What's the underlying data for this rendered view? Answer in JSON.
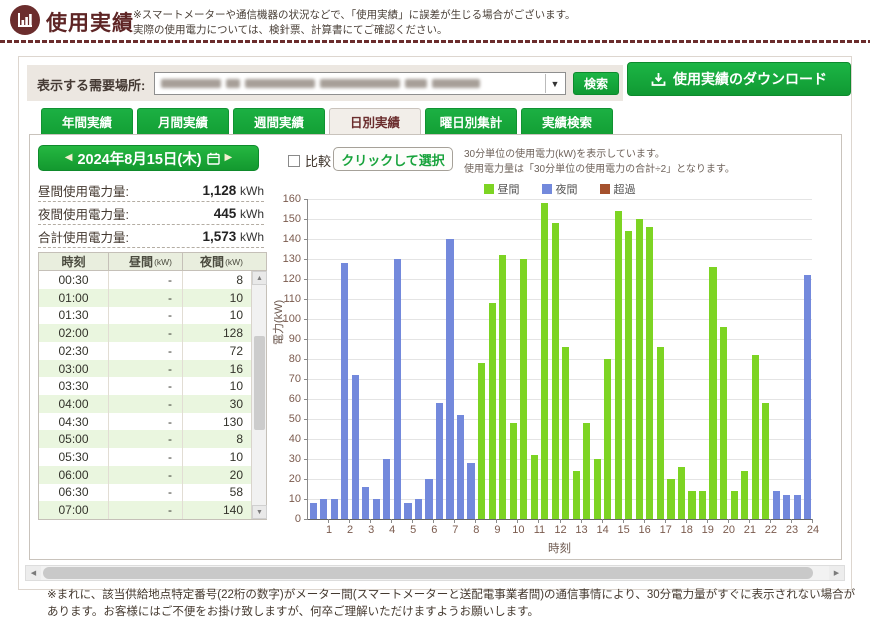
{
  "header": {
    "title": "使用実績",
    "notice_line1": "※スマートメーターや通信機器の状況などで、「使用実績」に誤差が生じる場合がございます。",
    "notice_line2": "実際の使用電力については、検針票、計算書にてご確認ください。"
  },
  "toolbar": {
    "location_label": "表示する需要場所:",
    "search_button": "検索",
    "download_button": "使用実績のダウンロード"
  },
  "tabs": [
    {
      "label": "年間実績",
      "active": false
    },
    {
      "label": "月間実績",
      "active": false
    },
    {
      "label": "週間実績",
      "active": false
    },
    {
      "label": "日別実績",
      "active": true
    },
    {
      "label": "曜日別集計",
      "active": false
    },
    {
      "label": "実績検索",
      "active": false
    }
  ],
  "controls": {
    "date_label": "2024年8月15日(木)",
    "compare_label": "比較",
    "select_button": "クリックして選択",
    "note_line1": "30分単位の使用電力(kW)を表示しています。",
    "note_line2": "使用電力量は「30分単位の使用電力の合計÷2」となります。"
  },
  "summary": [
    {
      "label": "昼間使用電力量:",
      "value": "1,128",
      "unit": "kWh"
    },
    {
      "label": "夜間使用電力量:",
      "value": "445",
      "unit": "kWh"
    },
    {
      "label": "合計使用電力量:",
      "value": "1,573",
      "unit": "kWh"
    }
  ],
  "table": {
    "headers": [
      {
        "label": "時刻",
        "unit": ""
      },
      {
        "label": "昼間",
        "unit": "(kW)"
      },
      {
        "label": "夜間",
        "unit": "(kW)"
      }
    ],
    "rows": [
      [
        "00:30",
        "-",
        "8"
      ],
      [
        "01:00",
        "-",
        "10"
      ],
      [
        "01:30",
        "-",
        "10"
      ],
      [
        "02:00",
        "-",
        "128"
      ],
      [
        "02:30",
        "-",
        "72"
      ],
      [
        "03:00",
        "-",
        "16"
      ],
      [
        "03:30",
        "-",
        "10"
      ],
      [
        "04:00",
        "-",
        "30"
      ],
      [
        "04:30",
        "-",
        "130"
      ],
      [
        "05:00",
        "-",
        "8"
      ],
      [
        "05:30",
        "-",
        "10"
      ],
      [
        "06:00",
        "-",
        "20"
      ],
      [
        "06:30",
        "-",
        "58"
      ],
      [
        "07:00",
        "-",
        "140"
      ]
    ]
  },
  "chart_data": {
    "type": "bar",
    "xlabel": "時刻",
    "ylabel": "電力(kW)",
    "ylim": [
      0,
      160
    ],
    "ytick_step": 10,
    "x_tick_labels": [
      "1",
      "2",
      "3",
      "4",
      "5",
      "6",
      "7",
      "8",
      "9",
      "10",
      "11",
      "12",
      "13",
      "14",
      "15",
      "16",
      "17",
      "18",
      "19",
      "20",
      "21",
      "22",
      "23",
      "24"
    ],
    "legend": [
      {
        "label": "昼間",
        "series": "day"
      },
      {
        "label": "夜間",
        "series": "night"
      },
      {
        "label": "超過",
        "series": "over"
      }
    ],
    "points": [
      {
        "time": "00:30",
        "value": 8,
        "series": "night"
      },
      {
        "time": "01:00",
        "value": 10,
        "series": "night"
      },
      {
        "time": "01:30",
        "value": 10,
        "series": "night"
      },
      {
        "time": "02:00",
        "value": 128,
        "series": "night"
      },
      {
        "time": "02:30",
        "value": 72,
        "series": "night"
      },
      {
        "time": "03:00",
        "value": 16,
        "series": "night"
      },
      {
        "time": "03:30",
        "value": 10,
        "series": "night"
      },
      {
        "time": "04:00",
        "value": 30,
        "series": "night"
      },
      {
        "time": "04:30",
        "value": 130,
        "series": "night"
      },
      {
        "time": "05:00",
        "value": 8,
        "series": "night"
      },
      {
        "time": "05:30",
        "value": 10,
        "series": "night"
      },
      {
        "time": "06:00",
        "value": 20,
        "series": "night"
      },
      {
        "time": "06:30",
        "value": 58,
        "series": "night"
      },
      {
        "time": "07:00",
        "value": 140,
        "series": "night"
      },
      {
        "time": "07:30",
        "value": 52,
        "series": "night"
      },
      {
        "time": "08:00",
        "value": 28,
        "series": "night"
      },
      {
        "time": "08:30",
        "value": 78,
        "series": "day"
      },
      {
        "time": "09:00",
        "value": 108,
        "series": "day"
      },
      {
        "time": "09:30",
        "value": 132,
        "series": "day"
      },
      {
        "time": "10:00",
        "value": 48,
        "series": "day"
      },
      {
        "time": "10:30",
        "value": 130,
        "series": "day"
      },
      {
        "time": "11:00",
        "value": 32,
        "series": "day"
      },
      {
        "time": "11:30",
        "value": 158,
        "series": "day"
      },
      {
        "time": "12:00",
        "value": 148,
        "series": "day"
      },
      {
        "time": "12:30",
        "value": 86,
        "series": "day"
      },
      {
        "time": "13:00",
        "value": 24,
        "series": "day"
      },
      {
        "time": "13:30",
        "value": 48,
        "series": "day"
      },
      {
        "time": "14:00",
        "value": 30,
        "series": "day"
      },
      {
        "time": "14:30",
        "value": 80,
        "series": "day"
      },
      {
        "time": "15:00",
        "value": 154,
        "series": "day"
      },
      {
        "time": "15:30",
        "value": 144,
        "series": "day"
      },
      {
        "time": "16:00",
        "value": 150,
        "series": "day"
      },
      {
        "time": "16:30",
        "value": 146,
        "series": "day"
      },
      {
        "time": "17:00",
        "value": 86,
        "series": "day"
      },
      {
        "time": "17:30",
        "value": 20,
        "series": "day"
      },
      {
        "time": "18:00",
        "value": 26,
        "series": "day"
      },
      {
        "time": "18:30",
        "value": 14,
        "series": "day"
      },
      {
        "time": "19:00",
        "value": 14,
        "series": "day"
      },
      {
        "time": "19:30",
        "value": 126,
        "series": "day"
      },
      {
        "time": "20:00",
        "value": 96,
        "series": "day"
      },
      {
        "time": "20:30",
        "value": 14,
        "series": "day"
      },
      {
        "time": "21:00",
        "value": 24,
        "series": "day"
      },
      {
        "time": "21:30",
        "value": 82,
        "series": "day"
      },
      {
        "time": "22:00",
        "value": 58,
        "series": "day"
      },
      {
        "time": "22:30",
        "value": 14,
        "series": "night"
      },
      {
        "time": "23:00",
        "value": 12,
        "series": "night"
      },
      {
        "time": "23:30",
        "value": 12,
        "series": "night"
      },
      {
        "time": "24:00",
        "value": 122,
        "series": "night"
      }
    ]
  },
  "footer": {
    "notice": "※まれに、該当供給地点特定番号(22桁の数字)がメーター間(スマートメーターと送配電事業者間)の通信事情により、30分電力量がすぐに表示されない場合があります。お客様にはご不便をお掛け致しますが、何卒ご理解いただけますようお願いします。"
  },
  "colors": {
    "brand_maroon": "#6b2d2d",
    "button_green": "#14a738",
    "bar_day": "#7dd423",
    "bar_night": "#7389dc",
    "bar_over": "#a5512d",
    "tick_text": "#7b5b4e"
  }
}
